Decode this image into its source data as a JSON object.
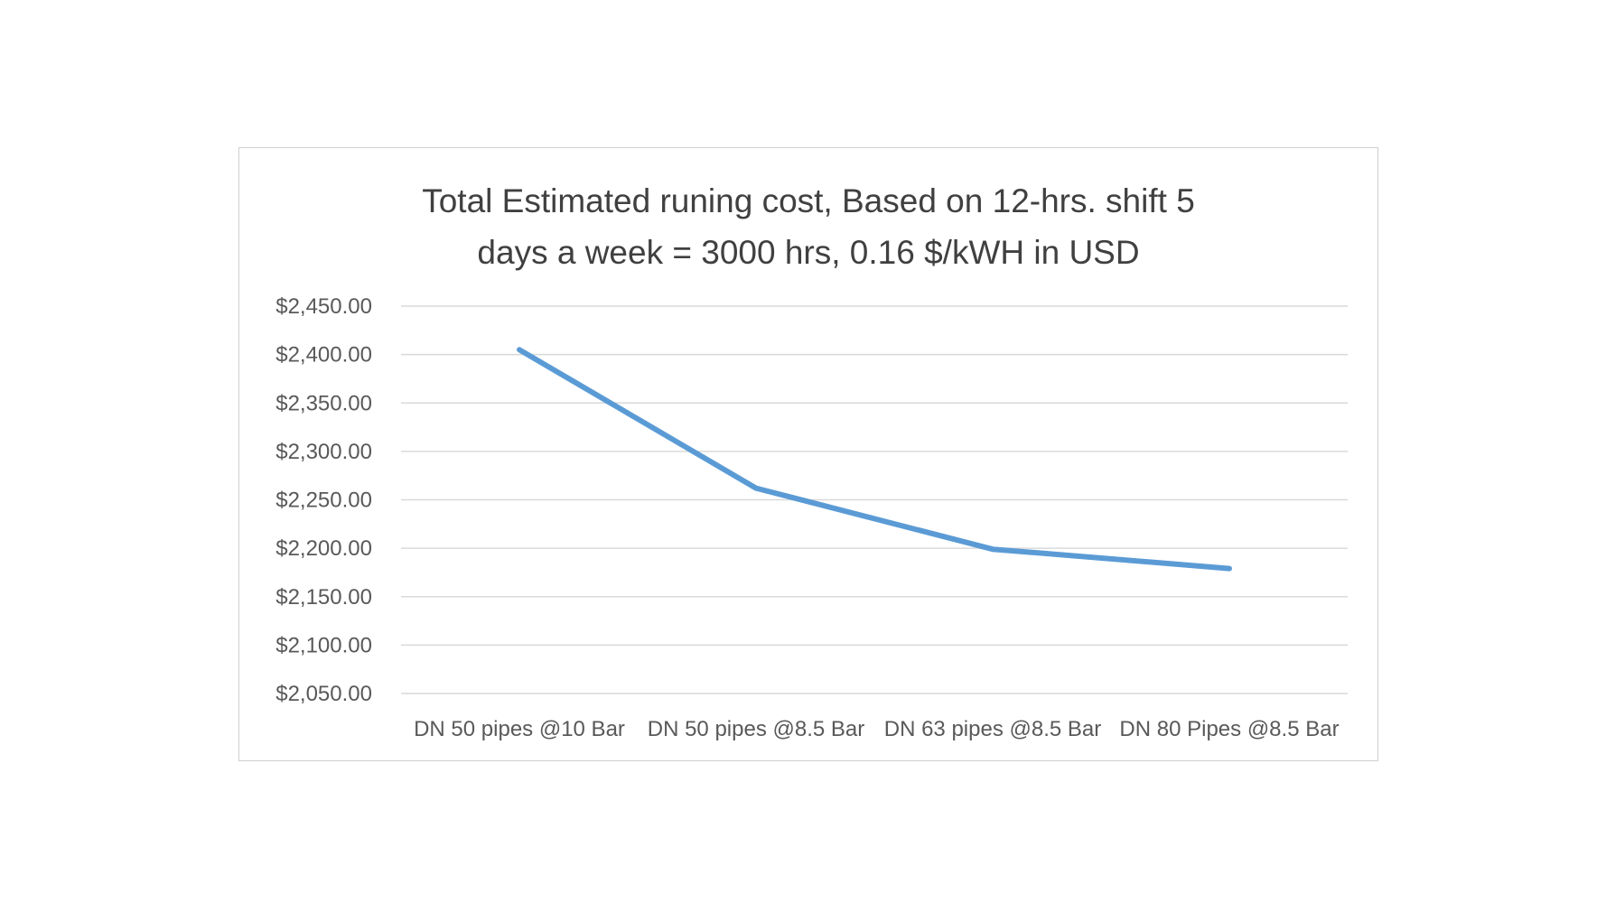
{
  "chart_data": {
    "type": "line",
    "title_lines": [
      "Total Estimated runing cost, Based on 12-hrs. shift 5",
      "days a week = 3000 hrs, 0.16 $/kWH in USD"
    ],
    "categories": [
      "DN 50 pipes @10 Bar",
      "DN 50 pipes @8.5 Bar",
      "DN 63 pipes @8.5 Bar",
      "DN 80 Pipes @8.5 Bar"
    ],
    "series": [
      {
        "values": [
          2405,
          2262,
          2199,
          2179
        ]
      }
    ],
    "y_ticks": [
      "$2,450.00",
      "$2,400.00",
      "$2,350.00",
      "$2,300.00",
      "$2,250.00",
      "$2,200.00",
      "$2,150.00",
      "$2,100.00",
      "$2,050.00"
    ],
    "ylim": [
      2050,
      2450
    ],
    "grid": true,
    "legend": "none",
    "colors": {
      "line": "#5b9bd5",
      "grid": "#d9d9d9",
      "text": "#595959",
      "title": "#404040",
      "border": "#d0d0d0"
    }
  }
}
